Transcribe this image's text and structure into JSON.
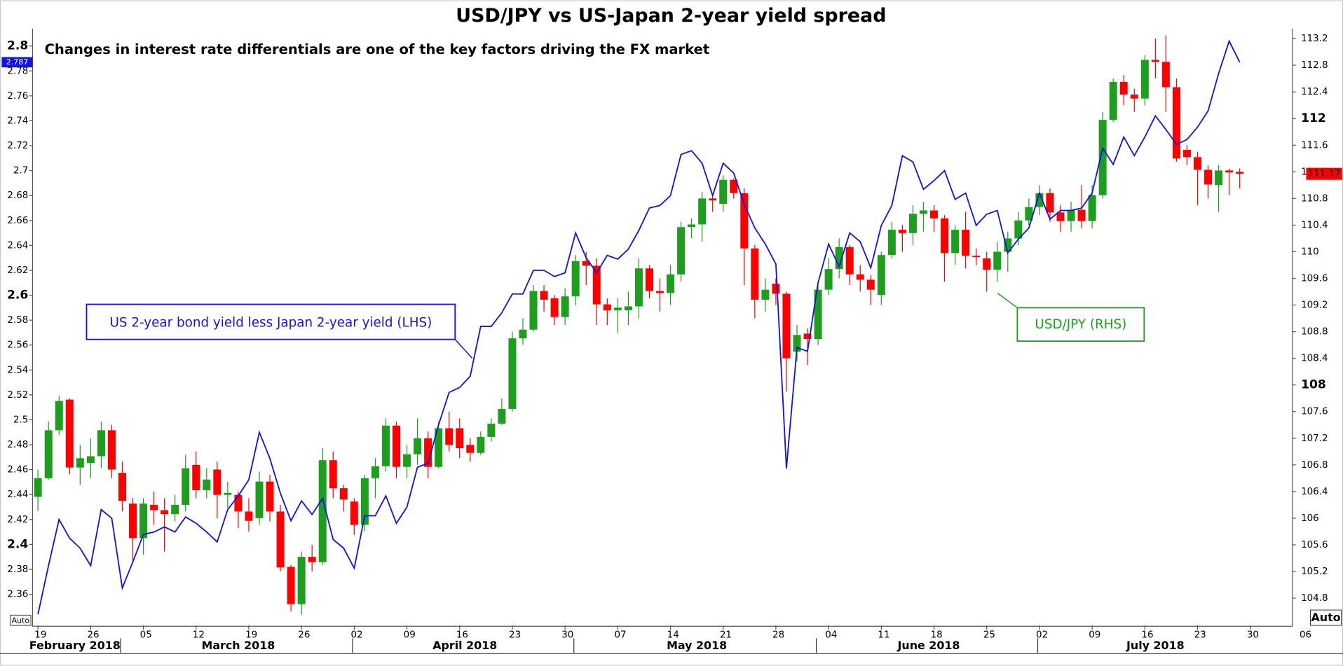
{
  "chart_data": {
    "type": "candlestick",
    "title": "USD/JPY vs US-Japan 2-year yield spread",
    "subtitle": "Changes in interest rate differentials are one of the key factors driving the FX market",
    "x": [
      "2018-02-19",
      "2018-02-20",
      "2018-02-21",
      "2018-02-22",
      "2018-02-23",
      "2018-02-26",
      "2018-02-27",
      "2018-02-28",
      "2018-03-01",
      "2018-03-02",
      "2018-03-05",
      "2018-03-06",
      "2018-03-07",
      "2018-03-08",
      "2018-03-09",
      "2018-03-12",
      "2018-03-13",
      "2018-03-14",
      "2018-03-15",
      "2018-03-16",
      "2018-03-19",
      "2018-03-20",
      "2018-03-21",
      "2018-03-22",
      "2018-03-23",
      "2018-03-26",
      "2018-03-27",
      "2018-03-28",
      "2018-03-29",
      "2018-03-30",
      "2018-04-02",
      "2018-04-03",
      "2018-04-04",
      "2018-04-05",
      "2018-04-06",
      "2018-04-09",
      "2018-04-10",
      "2018-04-11",
      "2018-04-12",
      "2018-04-13",
      "2018-04-16",
      "2018-04-17",
      "2018-04-18",
      "2018-04-19",
      "2018-04-20",
      "2018-04-23",
      "2018-04-24",
      "2018-04-25",
      "2018-04-26",
      "2018-04-27",
      "2018-04-30",
      "2018-05-01",
      "2018-05-02",
      "2018-05-03",
      "2018-05-04",
      "2018-05-07",
      "2018-05-08",
      "2018-05-09",
      "2018-05-10",
      "2018-05-11",
      "2018-05-14",
      "2018-05-15",
      "2018-05-16",
      "2018-05-17",
      "2018-05-18",
      "2018-05-21",
      "2018-05-22",
      "2018-05-23",
      "2018-05-24",
      "2018-05-25",
      "2018-05-28",
      "2018-05-29",
      "2018-05-30",
      "2018-05-31",
      "2018-06-01",
      "2018-06-04",
      "2018-06-05",
      "2018-06-06",
      "2018-06-07",
      "2018-06-08",
      "2018-06-11",
      "2018-06-12",
      "2018-06-13",
      "2018-06-14",
      "2018-06-15",
      "2018-06-18",
      "2018-06-19",
      "2018-06-20",
      "2018-06-21",
      "2018-06-22",
      "2018-06-25",
      "2018-06-26",
      "2018-06-27",
      "2018-06-28",
      "2018-06-29",
      "2018-07-02",
      "2018-07-03",
      "2018-07-04",
      "2018-07-05",
      "2018-07-06",
      "2018-07-09",
      "2018-07-10",
      "2018-07-11",
      "2018-07-12",
      "2018-07-13",
      "2018-07-16",
      "2018-07-17",
      "2018-07-18",
      "2018-07-19",
      "2018-07-20",
      "2018-07-23",
      "2018-07-24",
      "2018-07-25",
      "2018-07-26",
      "2018-07-27"
    ],
    "xlim": [
      "2018-02-16",
      "2018-08-03"
    ],
    "xticks": [
      {
        "value": "2018-02-19",
        "label": "19"
      },
      {
        "value": "2018-02-26",
        "label": "26"
      },
      {
        "value": "2018-03-05",
        "label": "05"
      },
      {
        "value": "2018-03-12",
        "label": "12"
      },
      {
        "value": "2018-03-19",
        "label": "19"
      },
      {
        "value": "2018-03-26",
        "label": "26"
      },
      {
        "value": "2018-04-02",
        "label": "02"
      },
      {
        "value": "2018-04-09",
        "label": "09"
      },
      {
        "value": "2018-04-16",
        "label": "16"
      },
      {
        "value": "2018-04-23",
        "label": "23"
      },
      {
        "value": "2018-04-30",
        "label": "30"
      },
      {
        "value": "2018-05-07",
        "label": "07"
      },
      {
        "value": "2018-05-14",
        "label": "14"
      },
      {
        "value": "2018-05-21",
        "label": "21"
      },
      {
        "value": "2018-05-28",
        "label": "28"
      },
      {
        "value": "2018-06-04",
        "label": "04"
      },
      {
        "value": "2018-06-11",
        "label": "11"
      },
      {
        "value": "2018-06-18",
        "label": "18"
      },
      {
        "value": "2018-06-25",
        "label": "25"
      },
      {
        "value": "2018-07-02",
        "label": "02"
      },
      {
        "value": "2018-07-09",
        "label": "09"
      },
      {
        "value": "2018-07-16",
        "label": "16"
      },
      {
        "value": "2018-07-23",
        "label": "23"
      },
      {
        "value": "2018-07-30",
        "label": "30"
      },
      {
        "value": "2018-08-06",
        "label": "06"
      }
    ],
    "months": [
      {
        "value": "2018-02",
        "label": "February 2018"
      },
      {
        "value": "2018-03",
        "label": "March 2018"
      },
      {
        "value": "2018-04",
        "label": "April 2018"
      },
      {
        "value": "2018-05",
        "label": "May 2018"
      },
      {
        "value": "2018-06",
        "label": "June 2018"
      },
      {
        "value": "2018-07",
        "label": "July 2018"
      }
    ],
    "ylim": [
      2.335,
      2.814
    ],
    "yticks": [
      2.36,
      2.38,
      2.4,
      2.42,
      2.44,
      2.46,
      2.48,
      2.5,
      2.52,
      2.54,
      2.56,
      2.58,
      2.6,
      2.62,
      2.64,
      2.66,
      2.68,
      2.7,
      2.72,
      2.74,
      2.76,
      2.78,
      2.8
    ],
    "y2lim": [
      104.39,
      113.35
    ],
    "y2ticks": [
      104.8,
      105.2,
      105.6,
      106,
      106.4,
      106.8,
      107.2,
      107.6,
      108,
      108.4,
      108.8,
      109.2,
      109.6,
      110,
      110.4,
      110.8,
      111.2,
      111.6,
      112,
      112.4,
      112.8,
      113.2
    ],
    "grid": false,
    "axis_buttons": [
      "Auto",
      "Auto"
    ],
    "series": [
      {
        "name": "USD/JPY (RHS)",
        "type": "candlestick",
        "axis": "y2",
        "color": "#1e9e1e",
        "down_color": "#ff0000",
        "open": [
          106.32,
          106.6,
          107.32,
          107.78,
          106.76,
          106.83,
          106.93,
          107.32,
          106.68,
          106.22,
          105.7,
          106.2,
          106.12,
          106.06,
          106.2,
          106.8,
          106.42,
          106.73,
          106.35,
          106.35,
          106.1,
          106.0,
          106.55,
          106.1,
          105.27,
          104.71,
          105.42,
          105.34,
          106.87,
          106.45,
          106.25,
          105.9,
          106.6,
          106.78,
          107.39,
          106.77,
          106.96,
          107.2,
          106.77,
          107.35,
          107.35,
          107.1,
          106.98,
          107.22,
          107.42,
          107.64,
          108.7,
          108.83,
          109.41,
          109.3,
          109.02,
          109.33,
          109.86,
          109.79,
          109.21,
          109.12,
          109.12,
          109.18,
          109.75,
          109.41,
          109.38,
          109.66,
          110.37,
          110.41,
          110.8,
          110.72,
          111.08,
          110.88,
          110.05,
          109.28,
          109.52,
          109.37,
          108.5,
          108.77,
          108.69,
          109.43,
          109.74,
          110.07,
          109.66,
          109.58,
          109.35,
          109.95,
          110.33,
          110.28,
          110.57,
          110.62,
          110.5,
          109.98,
          110.33,
          109.94,
          109.9,
          109.73,
          110.0,
          110.2,
          110.47,
          110.67,
          110.88,
          110.59,
          110.46,
          110.63,
          110.46,
          110.85,
          111.98,
          112.55,
          112.36,
          112.3,
          112.88,
          112.85,
          112.47,
          111.53,
          111.42,
          111.23,
          111.0,
          111.22,
          111.2
        ],
        "high": [
          106.73,
          107.45,
          107.84,
          107.8,
          107.1,
          107.2,
          107.45,
          107.4,
          106.85,
          106.3,
          106.3,
          106.4,
          106.3,
          106.35,
          106.95,
          107.0,
          106.75,
          106.85,
          106.55,
          106.4,
          106.3,
          106.7,
          106.65,
          106.2,
          105.3,
          105.5,
          105.6,
          107.05,
          107.0,
          106.5,
          106.3,
          106.65,
          106.9,
          107.5,
          107.45,
          107.1,
          107.5,
          107.3,
          107.45,
          107.6,
          107.5,
          107.2,
          107.3,
          107.5,
          107.8,
          108.8,
          109.0,
          109.5,
          109.5,
          109.35,
          109.45,
          109.95,
          110.0,
          109.9,
          109.3,
          109.3,
          109.4,
          109.9,
          109.8,
          109.6,
          109.8,
          110.45,
          110.5,
          110.9,
          110.85,
          111.15,
          111.1,
          110.95,
          110.1,
          109.6,
          109.6,
          109.4,
          108.9,
          108.85,
          109.5,
          109.9,
          110.2,
          110.1,
          109.8,
          109.65,
          110.0,
          110.45,
          110.4,
          110.7,
          110.75,
          110.7,
          110.55,
          110.4,
          110.6,
          110.05,
          110.0,
          110.15,
          110.3,
          110.6,
          110.8,
          111.0,
          110.95,
          110.7,
          110.75,
          111.0,
          111.0,
          112.1,
          112.6,
          112.65,
          112.45,
          112.95,
          113.2,
          113.25,
          112.6,
          111.6,
          111.5,
          111.3,
          111.3,
          111.25,
          111.25
        ],
        "low": [
          106.11,
          106.58,
          107.25,
          106.66,
          106.5,
          106.6,
          106.75,
          106.6,
          106.1,
          105.35,
          105.45,
          105.9,
          105.5,
          105.95,
          106.1,
          106.3,
          106.3,
          106.0,
          106.15,
          105.85,
          105.8,
          105.9,
          105.95,
          105.2,
          104.6,
          104.55,
          105.2,
          105.3,
          106.3,
          106.1,
          105.75,
          105.8,
          106.3,
          106.7,
          106.6,
          106.6,
          106.8,
          106.6,
          106.75,
          107.0,
          106.9,
          106.85,
          106.95,
          107.15,
          107.4,
          107.6,
          108.6,
          108.8,
          109.1,
          108.9,
          108.9,
          109.2,
          109.5,
          108.9,
          108.9,
          108.78,
          108.9,
          109.0,
          109.3,
          109.1,
          109.2,
          109.55,
          110.2,
          110.15,
          110.6,
          110.6,
          110.8,
          109.5,
          109.0,
          109.1,
          109.2,
          107.9,
          108.35,
          108.3,
          108.6,
          109.35,
          109.6,
          109.5,
          109.4,
          109.2,
          109.2,
          109.9,
          110.0,
          110.1,
          110.3,
          110.3,
          109.55,
          109.8,
          109.75,
          109.8,
          109.4,
          109.55,
          109.7,
          110.1,
          110.4,
          110.55,
          110.45,
          110.3,
          110.3,
          110.35,
          110.35,
          110.8,
          111.95,
          112.2,
          112.1,
          112.2,
          112.6,
          112.1,
          111.35,
          111.3,
          110.7,
          110.8,
          110.6,
          110.85,
          110.95
        ],
        "close": [
          106.6,
          107.32,
          107.76,
          106.76,
          106.9,
          106.93,
          107.32,
          106.73,
          106.26,
          105.7,
          106.22,
          106.12,
          106.06,
          106.2,
          106.75,
          106.42,
          106.58,
          106.35,
          106.38,
          106.1,
          105.96,
          106.55,
          106.1,
          105.26,
          104.71,
          105.42,
          105.34,
          106.87,
          106.45,
          106.28,
          105.9,
          106.6,
          106.78,
          107.39,
          106.77,
          106.96,
          107.2,
          106.77,
          107.35,
          107.1,
          107.05,
          106.98,
          107.22,
          107.42,
          107.64,
          108.7,
          108.83,
          109.41,
          109.28,
          109.02,
          109.33,
          109.86,
          109.79,
          109.21,
          109.12,
          109.16,
          109.18,
          109.75,
          109.41,
          109.38,
          109.66,
          110.37,
          110.41,
          110.8,
          110.77,
          111.08,
          110.88,
          110.05,
          109.28,
          109.43,
          109.37,
          108.4,
          108.75,
          108.69,
          109.43,
          109.74,
          110.07,
          109.66,
          109.58,
          109.43,
          109.95,
          110.33,
          110.28,
          110.57,
          110.62,
          110.5,
          109.98,
          110.33,
          109.94,
          109.93,
          109.73,
          110.0,
          110.2,
          110.47,
          110.67,
          110.88,
          110.59,
          110.46,
          110.63,
          110.46,
          110.85,
          111.98,
          112.55,
          112.36,
          112.3,
          112.88,
          112.85,
          112.47,
          111.4,
          111.42,
          111.23,
          111.01,
          111.22,
          111.19,
          111.17
        ]
      },
      {
        "name": "US 2-year bond yield less Japan 2-year yield (LHS)",
        "type": "line",
        "axis": "y",
        "color": "#1414e0",
        "values": [
          2.344,
          2.383,
          2.42,
          2.405,
          2.397,
          2.383,
          2.428,
          2.421,
          2.365,
          2.386,
          2.408,
          2.41,
          2.414,
          2.41,
          2.422,
          2.417,
          2.41,
          2.402,
          2.428,
          2.439,
          2.452,
          2.49,
          2.469,
          2.441,
          2.419,
          2.435,
          2.424,
          2.437,
          2.404,
          2.397,
          2.381,
          2.423,
          2.423,
          2.439,
          2.417,
          2.43,
          2.462,
          2.465,
          2.496,
          2.522,
          2.526,
          2.535,
          2.575,
          2.575,
          2.586,
          2.601,
          2.601,
          2.62,
          2.62,
          2.615,
          2.618,
          2.65,
          2.63,
          2.618,
          2.632,
          2.629,
          2.637,
          2.652,
          2.67,
          2.672,
          2.68,
          2.713,
          2.716,
          2.706,
          2.68,
          2.706,
          2.698,
          2.673,
          2.654,
          2.641,
          2.625,
          2.461,
          2.558,
          2.555,
          2.61,
          2.641,
          2.623,
          2.65,
          2.643,
          2.622,
          2.656,
          2.672,
          2.712,
          2.707,
          2.685,
          2.692,
          2.7,
          2.677,
          2.682,
          2.656,
          2.665,
          2.668,
          2.634,
          2.645,
          2.654,
          2.682,
          2.661,
          2.668,
          2.668,
          2.67,
          2.682,
          2.718,
          2.705,
          2.727,
          2.712,
          2.727,
          2.744,
          2.733,
          2.721,
          2.725,
          2.735,
          2.748,
          2.778,
          2.804,
          2.787
        ]
      }
    ]
  }
}
